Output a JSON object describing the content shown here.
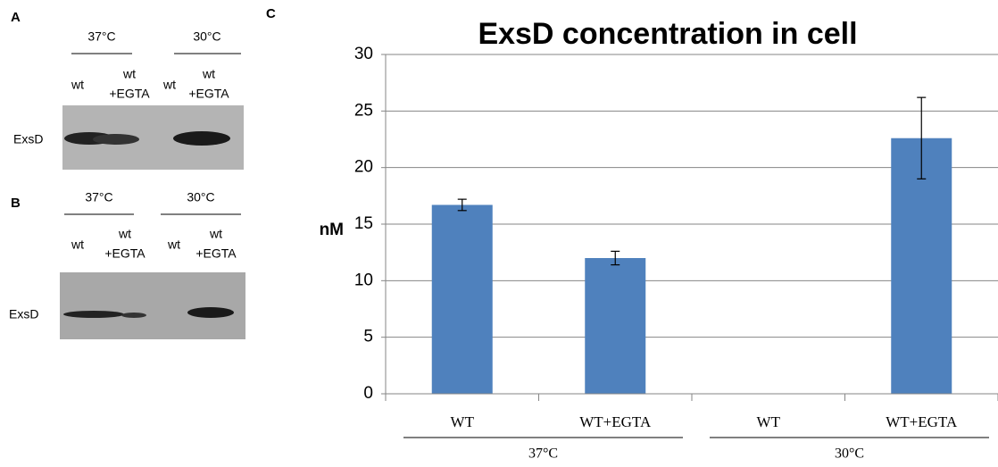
{
  "blots": [
    {
      "panel": "A",
      "temps": [
        "37°C",
        "30°C"
      ],
      "lanes": [
        [
          "wt"
        ],
        [
          "wt",
          "+EGTA"
        ],
        [
          "wt"
        ],
        [
          "wt",
          "+EGTA"
        ]
      ],
      "protein": "ExsD"
    },
    {
      "panel": "B",
      "temps": [
        "37°C",
        "30°C"
      ],
      "lanes": [
        [
          "wt"
        ],
        [
          "wt",
          "+EGTA"
        ],
        [
          "wt"
        ],
        [
          "wt",
          "+EGTA"
        ]
      ],
      "protein": "ExsD"
    }
  ],
  "chart_data": {
    "type": "bar",
    "panel": "C",
    "title": "ExsD concentration in cell",
    "y_label": "nM",
    "categories": [
      "WT",
      "WT+EGTA",
      "WT",
      "WT+EGTA"
    ],
    "groups": [
      "37°C",
      "30°C"
    ],
    "series": [
      {
        "color": "#4f81bd",
        "values": [
          16.7,
          12.0,
          null,
          22.6
        ],
        "errors": [
          0.5,
          0.6,
          null,
          3.6
        ]
      }
    ],
    "ylim": [
      0,
      30
    ],
    "yticks": [
      0,
      5,
      10,
      15,
      20,
      25,
      30
    ],
    "grid": true
  }
}
